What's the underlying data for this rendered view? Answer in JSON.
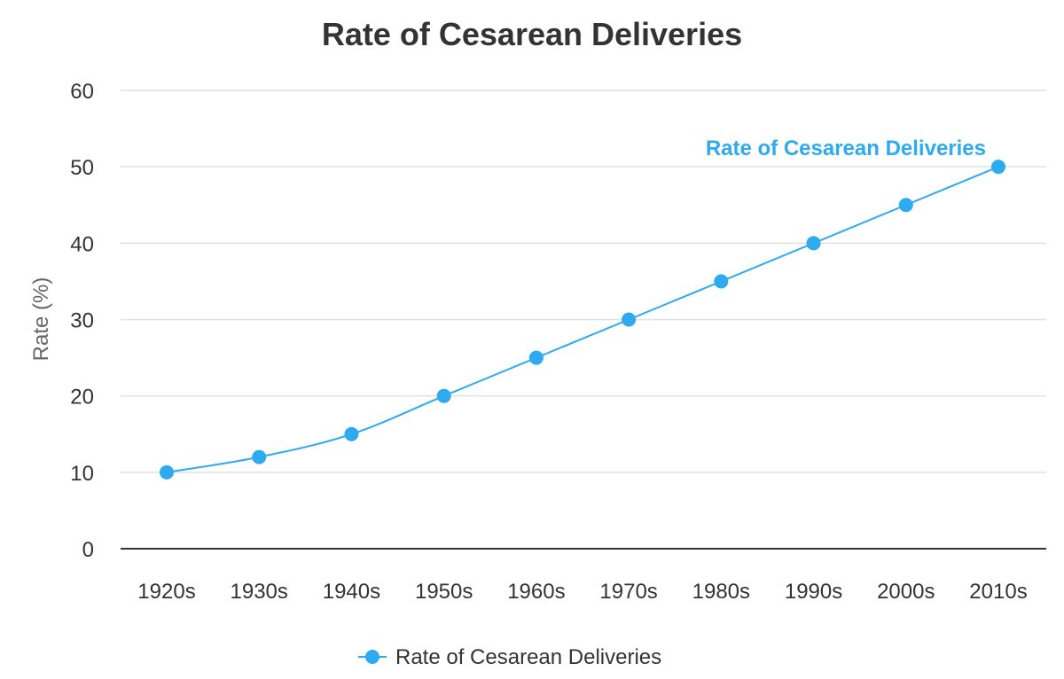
{
  "chart_data": {
    "type": "line",
    "title": "Rate of Cesarean Deliveries",
    "xlabel": "",
    "ylabel": "Rate (%)",
    "ylim": [
      0,
      60
    ],
    "yticks": [
      0,
      10,
      20,
      30,
      40,
      50,
      60
    ],
    "categories": [
      "1920s",
      "1930s",
      "1940s",
      "1950s",
      "1960s",
      "1970s",
      "1980s",
      "1990s",
      "2000s",
      "2010s"
    ],
    "series": [
      {
        "name": "Rate of Cesarean Deliveries",
        "color": "#2eaaf0",
        "values": [
          10,
          12,
          15,
          20,
          25,
          30,
          35,
          40,
          45,
          50
        ]
      }
    ],
    "grid": true,
    "legend": "bottom-center",
    "series_end_label": "Rate of Cesarean Deliveries"
  }
}
